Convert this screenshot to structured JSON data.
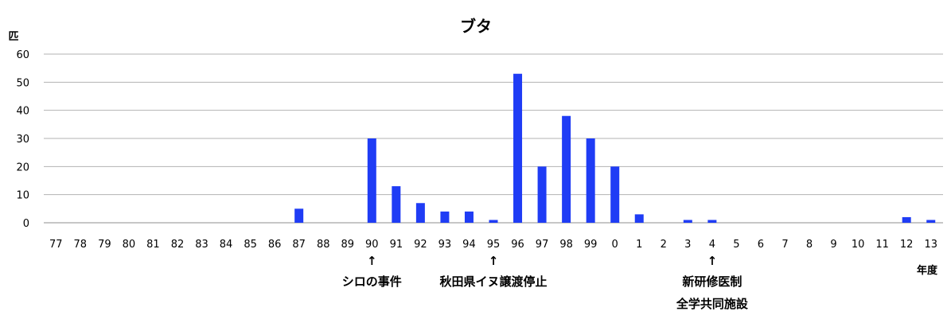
{
  "chart_data": {
    "type": "bar",
    "title": "ブタ",
    "ylabel": "匹",
    "xlabel": "年度",
    "ylim": [
      0,
      60
    ],
    "yticks": [
      0,
      10,
      20,
      30,
      40,
      50,
      60
    ],
    "grid": true,
    "bar_color": "#1f3cf5",
    "categories": [
      "77",
      "78",
      "79",
      "80",
      "81",
      "82",
      "83",
      "84",
      "85",
      "86",
      "87",
      "88",
      "89",
      "90",
      "91",
      "92",
      "93",
      "94",
      "95",
      "96",
      "97",
      "98",
      "99",
      "0",
      "1",
      "2",
      "3",
      "4",
      "5",
      "6",
      "7",
      "8",
      "9",
      "10",
      "11",
      "12",
      "13"
    ],
    "values": [
      0,
      0,
      0,
      0,
      0,
      0,
      0,
      0,
      0,
      0,
      5,
      0,
      0,
      30,
      13,
      7,
      4,
      4,
      1,
      53,
      20,
      38,
      30,
      20,
      3,
      0,
      1,
      1,
      0,
      0,
      0,
      0,
      0,
      0,
      0,
      2,
      1
    ],
    "annotations": [
      {
        "category": "90",
        "arrow": "↑",
        "lines": [
          "シロの事件"
        ]
      },
      {
        "category": "95",
        "arrow": "↑",
        "lines": [
          "秋田県イヌ譲渡停止"
        ]
      },
      {
        "category": "4",
        "arrow": "↑",
        "lines": [
          "新研修医制",
          "全学共同施設"
        ]
      }
    ]
  }
}
